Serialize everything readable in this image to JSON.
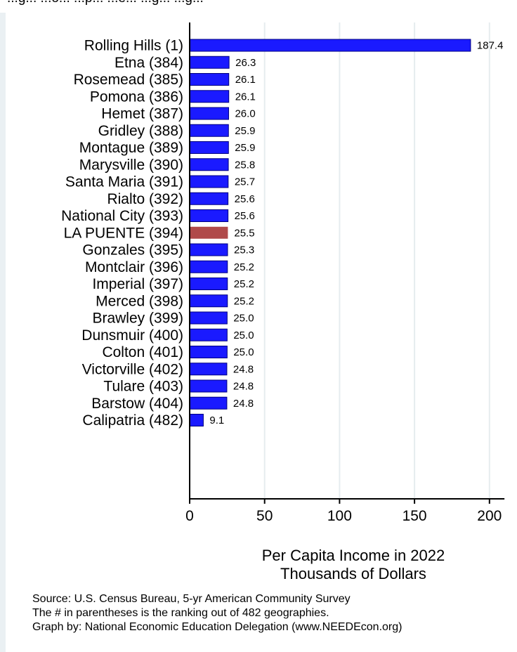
{
  "header_text": "...g... ...o... ...p... ...e... ...g... ...g...",
  "chart_data": {
    "type": "bar",
    "orientation": "horizontal",
    "categories": [
      "Rolling Hills  (1)",
      "Etna (384)",
      "Rosemead (385)",
      "Pomona (386)",
      "Hemet (387)",
      "Gridley (388)",
      "Montague (389)",
      "Marysville (390)",
      "Santa Maria (391)",
      "Rialto (392)",
      "National City (393)",
      "LA PUENTE (394)",
      "Gonzales (395)",
      "Montclair (396)",
      "Imperial (397)",
      "Merced (398)",
      "Brawley (399)",
      "Dunsmuir (400)",
      "Colton (401)",
      "Victorville (402)",
      "Tulare (403)",
      "Barstow (404)",
      "Calipatria (482)"
    ],
    "values": [
      187.4,
      26.3,
      26.1,
      26.1,
      26.0,
      25.9,
      25.9,
      25.8,
      25.7,
      25.6,
      25.6,
      25.5,
      25.3,
      25.2,
      25.2,
      25.2,
      25.0,
      25.0,
      25.0,
      24.8,
      24.8,
      24.8,
      9.1
    ],
    "value_labels": [
      "187.4",
      "26.3",
      "26.1",
      "26.1",
      "26.0",
      "25.9",
      "25.9",
      "25.8",
      "25.7",
      "25.6",
      "25.6",
      "25.5",
      "25.3",
      "25.2",
      "25.2",
      "25.2",
      "25.0",
      "25.0",
      "25.0",
      "24.8",
      "24.8",
      "24.8",
      "9.1"
    ],
    "highlight_index": 11,
    "bar_color": "#1a1aff",
    "bar_edge_color": "#000080",
    "highlight_color": "#b04a4a",
    "xlim": [
      0,
      210
    ],
    "xticks": [
      0,
      50,
      100,
      150,
      200
    ],
    "grid": true,
    "xlabel_line1": "Per Capita Income in 2022",
    "xlabel_line2": "Thousands of Dollars"
  },
  "notes": {
    "source": "Source: U.S. Census Bureau, 5-yr American Community Survey",
    "ranking": "The # in parentheses is the ranking out of 482 geographies.",
    "credit": "Graph by: National Economic Education Delegation (www.NEEDEcon.org)"
  }
}
